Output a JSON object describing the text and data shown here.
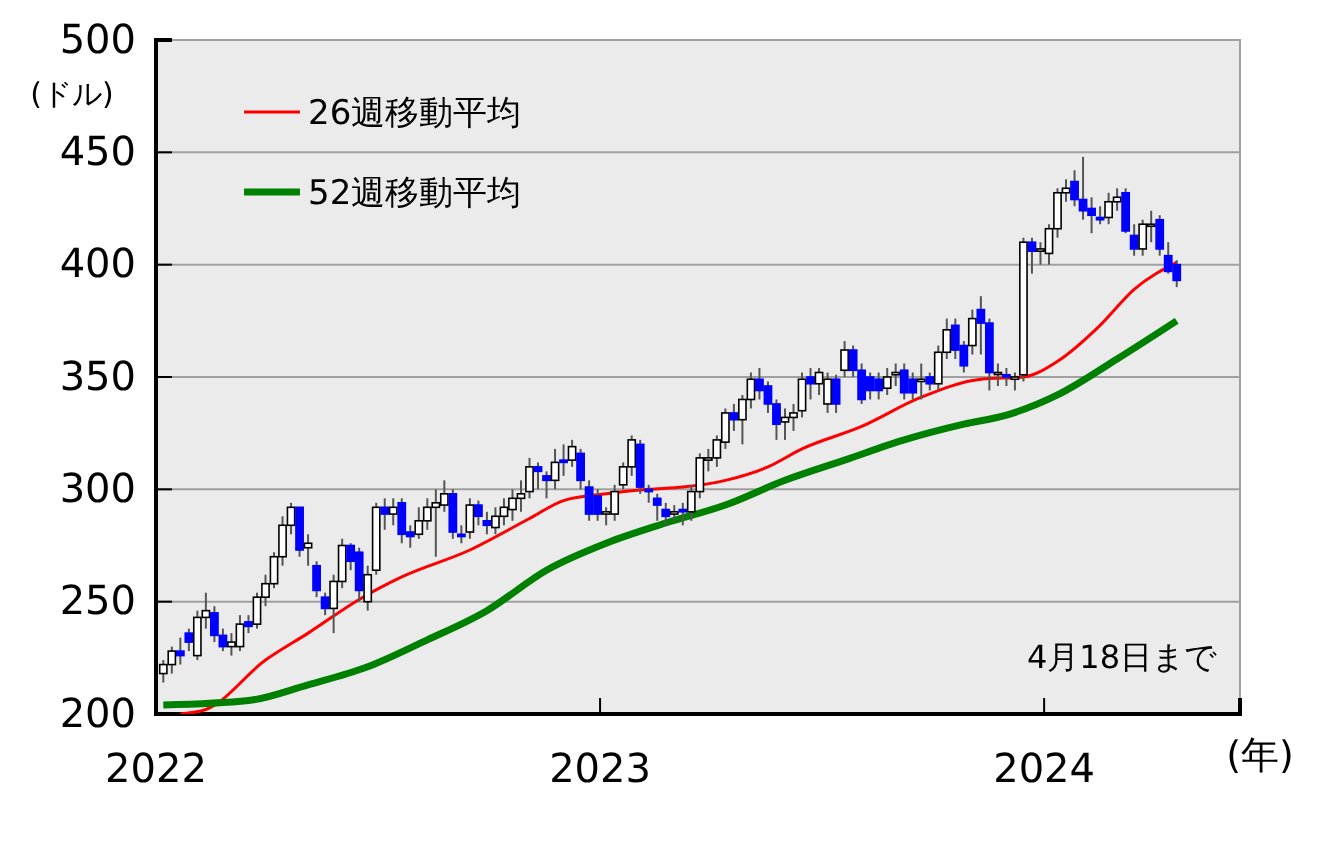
{
  "chart_data": {
    "type": "candlestick",
    "xlabel": "(年)",
    "ylabel": "(ドル)",
    "annotations": [
      "4月18日まで"
    ],
    "xlim": [
      "2022-01-01",
      "2024-06-10"
    ],
    "xticks": [
      "2022",
      "2023",
      "2024"
    ],
    "ylim": [
      200,
      500
    ],
    "yticks": [
      200,
      250,
      300,
      350,
      400,
      450,
      500
    ],
    "grid": "y",
    "legend": "top left",
    "x": [
      "2022-01-07",
      "2022-01-14",
      "2022-01-21",
      "2022-01-28",
      "2022-02-04",
      "2022-02-11",
      "2022-02-18",
      "2022-02-25",
      "2022-03-04",
      "2022-03-11",
      "2022-03-18",
      "2022-03-25",
      "2022-04-01",
      "2022-04-08",
      "2022-04-15",
      "2022-04-22",
      "2022-04-29",
      "2022-05-06",
      "2022-05-13",
      "2022-05-20",
      "2022-05-27",
      "2022-06-03",
      "2022-06-10",
      "2022-06-17",
      "2022-06-24",
      "2022-07-01",
      "2022-07-08",
      "2022-07-15",
      "2022-07-22",
      "2022-07-29",
      "2022-08-05",
      "2022-08-12",
      "2022-08-19",
      "2022-08-26",
      "2022-09-02",
      "2022-09-09",
      "2022-09-16",
      "2022-09-23",
      "2022-09-30",
      "2022-10-07",
      "2022-10-14",
      "2022-10-21",
      "2022-10-28",
      "2022-11-04",
      "2022-11-11",
      "2022-11-18",
      "2022-11-25",
      "2022-12-02",
      "2022-12-09",
      "2022-12-16",
      "2022-12-23",
      "2022-12-30",
      "2023-01-06",
      "2023-01-13",
      "2023-01-20",
      "2023-01-27",
      "2023-02-03",
      "2023-02-10",
      "2023-02-17",
      "2023-02-24",
      "2023-03-03",
      "2023-03-10",
      "2023-03-17",
      "2023-03-24",
      "2023-03-31",
      "2023-04-07",
      "2023-04-14",
      "2023-04-21",
      "2023-04-28",
      "2023-05-05",
      "2023-05-12",
      "2023-05-19",
      "2023-05-26",
      "2023-06-02",
      "2023-06-09",
      "2023-06-16",
      "2023-06-23",
      "2023-06-30",
      "2023-07-07",
      "2023-07-14",
      "2023-07-21",
      "2023-07-28",
      "2023-08-04",
      "2023-08-11",
      "2023-08-18",
      "2023-08-25",
      "2023-09-01",
      "2023-09-08",
      "2023-09-15",
      "2023-09-22",
      "2023-09-29",
      "2023-10-06",
      "2023-10-13",
      "2023-10-20",
      "2023-10-27",
      "2023-11-03",
      "2023-11-10",
      "2023-11-17",
      "2023-11-24",
      "2023-12-01",
      "2023-12-08",
      "2023-12-15",
      "2023-12-22",
      "2023-12-29",
      "2024-01-05",
      "2024-01-12",
      "2024-01-19",
      "2024-01-26",
      "2024-02-02",
      "2024-02-09",
      "2024-02-16",
      "2024-02-23",
      "2024-03-01",
      "2024-03-08",
      "2024-03-15",
      "2024-03-22",
      "2024-03-29",
      "2024-04-05",
      "2024-04-12",
      "2024-04-19"
    ],
    "ohlc": [
      [
        218,
        224,
        214,
        222
      ],
      [
        222,
        230,
        218,
        228
      ],
      [
        228,
        234,
        222,
        226
      ],
      [
        236,
        238,
        228,
        232
      ],
      [
        226,
        246,
        224,
        243
      ],
      [
        243,
        254,
        238,
        246
      ],
      [
        245,
        248,
        232,
        235
      ],
      [
        235,
        238,
        228,
        230
      ],
      [
        230,
        236,
        226,
        232
      ],
      [
        230,
        244,
        228,
        240
      ],
      [
        241,
        244,
        236,
        239
      ],
      [
        240,
        254,
        238,
        252
      ],
      [
        252,
        262,
        248,
        258
      ],
      [
        258,
        272,
        256,
        270
      ],
      [
        270,
        288,
        266,
        284
      ],
      [
        284,
        294,
        280,
        292
      ],
      [
        292,
        292,
        270,
        273
      ],
      [
        274,
        280,
        266,
        276
      ],
      [
        266,
        268,
        252,
        255
      ],
      [
        252,
        254,
        244,
        247
      ],
      [
        247,
        262,
        236,
        259
      ],
      [
        259,
        278,
        256,
        275
      ],
      [
        275,
        276,
        264,
        268
      ],
      [
        272,
        274,
        250,
        255
      ],
      [
        250,
        266,
        246,
        262
      ],
      [
        264,
        294,
        262,
        292
      ],
      [
        292,
        296,
        282,
        289
      ],
      [
        289,
        296,
        284,
        292
      ],
      [
        294,
        296,
        276,
        280
      ],
      [
        281,
        284,
        274,
        279
      ],
      [
        280,
        292,
        278,
        286
      ],
      [
        286,
        296,
        282,
        292
      ],
      [
        292,
        300,
        270,
        294
      ],
      [
        293,
        304,
        290,
        298
      ],
      [
        298,
        300,
        278,
        281
      ],
      [
        280,
        284,
        276,
        279
      ],
      [
        281,
        296,
        278,
        293
      ],
      [
        293,
        295,
        284,
        288
      ],
      [
        286,
        290,
        280,
        284
      ],
      [
        283,
        292,
        280,
        288
      ],
      [
        288,
        296,
        284,
        292
      ],
      [
        291,
        300,
        286,
        296
      ],
      [
        296,
        304,
        290,
        298
      ],
      [
        299,
        314,
        296,
        310
      ],
      [
        310,
        312,
        300,
        308
      ],
      [
        306,
        308,
        296,
        304
      ],
      [
        304,
        318,
        300,
        312
      ],
      [
        313,
        320,
        306,
        312
      ],
      [
        313,
        322,
        310,
        319
      ],
      [
        316,
        318,
        300,
        304
      ],
      [
        301,
        304,
        286,
        289
      ],
      [
        297,
        300,
        286,
        289
      ],
      [
        289,
        292,
        284,
        290
      ],
      [
        289,
        302,
        286,
        299
      ],
      [
        302,
        312,
        300,
        310
      ],
      [
        310,
        324,
        306,
        322
      ],
      [
        320,
        322,
        298,
        301
      ],
      [
        300,
        302,
        294,
        299
      ],
      [
        296,
        298,
        286,
        293
      ],
      [
        291,
        294,
        284,
        288
      ],
      [
        289,
        293,
        286,
        290
      ],
      [
        291,
        294,
        284,
        290
      ],
      [
        290,
        302,
        286,
        299
      ],
      [
        299,
        316,
        296,
        314
      ],
      [
        313,
        318,
        308,
        314
      ],
      [
        314,
        324,
        310,
        322
      ],
      [
        321,
        336,
        318,
        334
      ],
      [
        334,
        338,
        326,
        331
      ],
      [
        331,
        342,
        320,
        340
      ],
      [
        340,
        352,
        336,
        349
      ],
      [
        349,
        354,
        340,
        344
      ],
      [
        346,
        348,
        334,
        338
      ],
      [
        338,
        340,
        322,
        329
      ],
      [
        330,
        336,
        322,
        332
      ],
      [
        332,
        338,
        326,
        334
      ],
      [
        335,
        352,
        332,
        349
      ],
      [
        350,
        354,
        340,
        347
      ],
      [
        347,
        354,
        342,
        352
      ],
      [
        338,
        352,
        334,
        349
      ],
      [
        349,
        351,
        334,
        338
      ],
      [
        353,
        366,
        350,
        362
      ],
      [
        362,
        364,
        350,
        353
      ],
      [
        353,
        356,
        338,
        340
      ],
      [
        350,
        352,
        340,
        344
      ],
      [
        349,
        352,
        340,
        344
      ],
      [
        345,
        354,
        342,
        350
      ],
      [
        351,
        356,
        346,
        352
      ],
      [
        353,
        356,
        340,
        343
      ],
      [
        349,
        352,
        340,
        343
      ],
      [
        348,
        356,
        340,
        349
      ],
      [
        350,
        352,
        344,
        347
      ],
      [
        347,
        364,
        344,
        361
      ],
      [
        361,
        376,
        358,
        371
      ],
      [
        373,
        376,
        358,
        362
      ],
      [
        364,
        366,
        352,
        355
      ],
      [
        364,
        380,
        360,
        376
      ],
      [
        380,
        386,
        360,
        374
      ],
      [
        374,
        376,
        344,
        352
      ],
      [
        352,
        356,
        346,
        352
      ],
      [
        351,
        354,
        346,
        350
      ],
      [
        349,
        352,
        344,
        350
      ],
      [
        351,
        412,
        348,
        410
      ],
      [
        410,
        412,
        396,
        406
      ],
      [
        406,
        410,
        400,
        407
      ],
      [
        405,
        418,
        400,
        416
      ],
      [
        416,
        434,
        412,
        432
      ],
      [
        432,
        438,
        428,
        434
      ],
      [
        437,
        442,
        426,
        429
      ],
      [
        429,
        448,
        420,
        424
      ],
      [
        425,
        430,
        414,
        422
      ],
      [
        421,
        426,
        418,
        420
      ],
      [
        421,
        432,
        418,
        428
      ],
      [
        428,
        434,
        424,
        430
      ],
      [
        432,
        434,
        414,
        415
      ],
      [
        413,
        418,
        404,
        407
      ],
      [
        407,
        420,
        404,
        418
      ],
      [
        418,
        424,
        410,
        418
      ],
      [
        420,
        422,
        404,
        407
      ],
      [
        404,
        410,
        396,
        397
      ],
      [
        400,
        402,
        390,
        393
      ]
    ],
    "colors": [
      "#ffffff",
      "#ffffff",
      "#0000ff",
      "#0000ff",
      "#ffffff",
      "#ffffff",
      "#0000ff",
      "#0000ff",
      "#ffffff",
      "#ffffff",
      "#0000ff",
      "#ffffff",
      "#ffffff",
      "#ffffff",
      "#ffffff",
      "#ffffff",
      "#0000ff",
      "#ffffff",
      "#0000ff",
      "#0000ff",
      "#ffffff",
      "#ffffff",
      "#0000ff",
      "#0000ff",
      "#ffffff",
      "#ffffff",
      "#0000ff",
      "#ffffff",
      "#0000ff",
      "#0000ff",
      "#ffffff",
      "#ffffff",
      "#ffffff",
      "#ffffff",
      "#0000ff",
      "#0000ff",
      "#ffffff",
      "#0000ff",
      "#0000ff",
      "#ffffff",
      "#ffffff",
      "#ffffff",
      "#ffffff",
      "#ffffff",
      "#0000ff",
      "#0000ff",
      "#ffffff",
      "#0000ff",
      "#ffffff",
      "#0000ff",
      "#0000ff",
      "#0000ff",
      "#ffffff",
      "#ffffff",
      "#ffffff",
      "#ffffff",
      "#0000ff",
      "#0000ff",
      "#0000ff",
      "#0000ff",
      "#ffffff",
      "#0000ff",
      "#ffffff",
      "#ffffff",
      "#ffffff",
      "#ffffff",
      "#ffffff",
      "#0000ff",
      "#ffffff",
      "#ffffff",
      "#0000ff",
      "#0000ff",
      "#0000ff",
      "#ffffff",
      "#ffffff",
      "#ffffff",
      "#0000ff",
      "#ffffff",
      "#ffffff",
      "#0000ff",
      "#ffffff",
      "#0000ff",
      "#0000ff",
      "#0000ff",
      "#0000ff",
      "#ffffff",
      "#ffffff",
      "#0000ff",
      "#0000ff",
      "#ffffff",
      "#0000ff",
      "#ffffff",
      "#ffffff",
      "#0000ff",
      "#0000ff",
      "#ffffff",
      "#0000ff",
      "#0000ff",
      "#ffffff",
      "#0000ff",
      "#ffffff",
      "#ffffff",
      "#0000ff",
      "#ffffff",
      "#ffffff",
      "#ffffff",
      "#ffffff",
      "#0000ff",
      "#0000ff",
      "#0000ff",
      "#0000ff",
      "#ffffff",
      "#ffffff",
      "#0000ff",
      "#0000ff",
      "#ffffff",
      "#ffffff",
      "#0000ff",
      "#0000ff",
      "#0000ff"
    ],
    "series": [
      {
        "name": "26週移動平均",
        "type": "line",
        "color": "#ff0000",
        "x": [
          "2022-01-21",
          "2022-02-11",
          "2022-04-01",
          "2022-05-06",
          "2022-06-17",
          "2022-07-22",
          "2022-09-16",
          "2022-11-04",
          "2022-12-02",
          "2023-01-06",
          "2023-02-10",
          "2023-03-10",
          "2023-04-14",
          "2023-05-19",
          "2023-06-16",
          "2023-08-04",
          "2023-09-22",
          "2023-11-10",
          "2023-12-15",
          "2024-01-12",
          "2024-02-16",
          "2024-03-15",
          "2024-04-19"
        ],
        "values": [
          200,
          202,
          224,
          236,
          251,
          261,
          273,
          287,
          295,
          298,
          300,
          301,
          304,
          310,
          318,
          328,
          341,
          349,
          350,
          357,
          373,
          389,
          401
        ]
      },
      {
        "name": "52週移動平均",
        "type": "line",
        "color": "#008000",
        "x": [
          "2022-01-07",
          "2022-03-18",
          "2022-05-06",
          "2022-06-24",
          "2022-08-12",
          "2022-09-30",
          "2022-11-18",
          "2023-01-06",
          "2023-02-24",
          "2023-04-14",
          "2023-06-02",
          "2023-07-21",
          "2023-09-08",
          "2023-10-27",
          "2023-12-01",
          "2024-01-12",
          "2024-03-01",
          "2024-04-19"
        ],
        "values": [
          204,
          206,
          213,
          221,
          233,
          246,
          264,
          276,
          285,
          293,
          304,
          313,
          322,
          329,
          333,
          342,
          358,
          375
        ]
      }
    ]
  }
}
